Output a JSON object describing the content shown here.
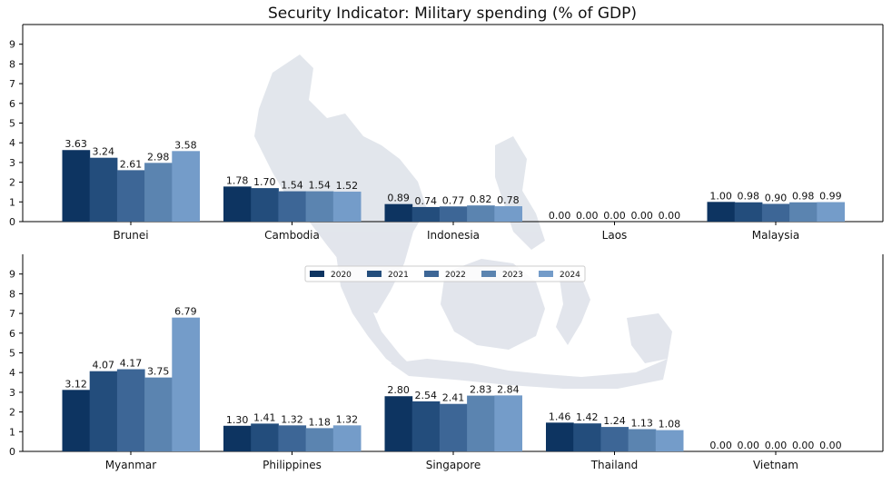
{
  "chart_data": {
    "type": "bar",
    "title": "Security Indicator: Military spending (% of GDP)",
    "xlabel": "",
    "ylabel": "",
    "ylim": [
      0,
      10
    ],
    "yticks": [
      0,
      1,
      2,
      3,
      4,
      5,
      6,
      7,
      8,
      9
    ],
    "legend_position": "top-center (bottom panel)",
    "grid": false,
    "colors": {
      "2020": "#0d3461",
      "2021": "#234d7c",
      "2022": "#3d6696",
      "2023": "#5b84b0",
      "2024": "#749cc9",
      "background_map": "#dfe3ea"
    },
    "series_names": [
      "2020",
      "2021",
      "2022",
      "2023",
      "2024"
    ],
    "panels": [
      {
        "categories": [
          "Brunei",
          "Cambodia",
          "Indonesia",
          "Laos",
          "Malaysia"
        ],
        "series": [
          {
            "name": "2020",
            "values": [
              3.63,
              1.78,
              0.89,
              0.0,
              1.0
            ]
          },
          {
            "name": "2021",
            "values": [
              3.24,
              1.7,
              0.74,
              0.0,
              0.98
            ]
          },
          {
            "name": "2022",
            "values": [
              2.61,
              1.54,
              0.77,
              0.0,
              0.9
            ]
          },
          {
            "name": "2023",
            "values": [
              2.98,
              1.54,
              0.82,
              0.0,
              0.98
            ]
          },
          {
            "name": "2024",
            "values": [
              3.58,
              1.52,
              0.78,
              0.0,
              0.99
            ]
          }
        ]
      },
      {
        "categories": [
          "Myanmar",
          "Philippines",
          "Singapore",
          "Thailand",
          "Vietnam"
        ],
        "series": [
          {
            "name": "2020",
            "values": [
              3.12,
              1.3,
              2.8,
              1.46,
              0.0
            ]
          },
          {
            "name": "2021",
            "values": [
              4.07,
              1.41,
              2.54,
              1.42,
              0.0
            ]
          },
          {
            "name": "2022",
            "values": [
              4.17,
              1.32,
              2.41,
              1.24,
              0.0
            ]
          },
          {
            "name": "2023",
            "values": [
              3.75,
              1.18,
              2.83,
              1.13,
              0.0
            ]
          },
          {
            "name": "2024",
            "values": [
              6.79,
              1.32,
              2.84,
              1.08,
              0.0
            ]
          }
        ]
      }
    ]
  }
}
